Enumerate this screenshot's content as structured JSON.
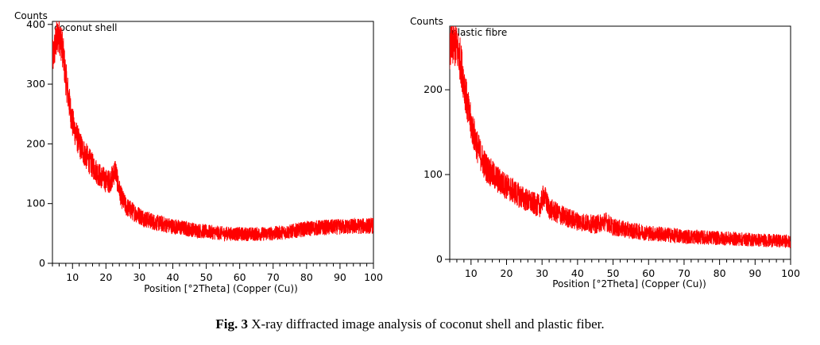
{
  "caption": {
    "label": "Fig. 3",
    "text": " X-ray diffracted image analysis of coconut shell and plastic fiber."
  },
  "chart_data": [
    {
      "type": "line",
      "title": "coconut shell",
      "ylabel": "Counts",
      "xlabel": "Position [°2Theta] (Copper (Cu))",
      "xlim": [
        4,
        100
      ],
      "ylim": [
        0,
        405
      ],
      "xticks": [
        10,
        20,
        30,
        40,
        50,
        60,
        70,
        80,
        90,
        100
      ],
      "yticks": [
        0,
        100,
        200,
        300,
        400
      ],
      "color": "#ff0000",
      "grid": false,
      "series": [
        {
          "x": [
            4,
            5,
            6,
            7,
            8,
            9,
            10,
            12,
            14,
            16,
            18,
            20,
            21,
            22,
            22.8,
            23.5,
            24.5,
            26,
            28,
            30,
            32,
            35,
            40,
            45,
            50,
            55,
            60,
            65,
            70,
            75,
            80,
            85,
            90,
            95,
            100
          ],
          "values": [
            340,
            370,
            385,
            360,
            310,
            270,
            235,
            200,
            180,
            163,
            148,
            138,
            137,
            145,
            158,
            135,
            112,
            95,
            87,
            80,
            74,
            68,
            62,
            57,
            53,
            50,
            49,
            49,
            50,
            53,
            58,
            60,
            61,
            62,
            63
          ]
        }
      ]
    },
    {
      "type": "line",
      "title": "plastic fibre",
      "ylabel": "Counts",
      "xlabel": "Position [°2Theta] (Copper (Cu))",
      "xlim": [
        4,
        100
      ],
      "ylim": [
        0,
        275
      ],
      "xticks": [
        10,
        20,
        30,
        40,
        50,
        60,
        70,
        80,
        90,
        100
      ],
      "yticks": [
        0,
        100,
        200
      ],
      "color": "#ff0000",
      "grid": false,
      "series": [
        {
          "x": [
            4,
            5,
            6,
            7,
            8,
            9,
            10,
            12,
            14,
            16,
            18,
            20,
            22,
            24,
            26,
            28,
            29.5,
            30.5,
            32,
            34,
            36,
            38,
            40,
            45,
            48,
            50,
            55,
            60,
            65,
            70,
            75,
            80,
            85,
            90,
            95,
            100
          ],
          "values": [
            245,
            255,
            250,
            235,
            210,
            180,
            160,
            130,
            110,
            100,
            92,
            86,
            80,
            74,
            69,
            65,
            63,
            76,
            60,
            55,
            51,
            48,
            45,
            41,
            45,
            38,
            34,
            31,
            29,
            27,
            26,
            25,
            24,
            23,
            22,
            21
          ]
        }
      ]
    }
  ]
}
